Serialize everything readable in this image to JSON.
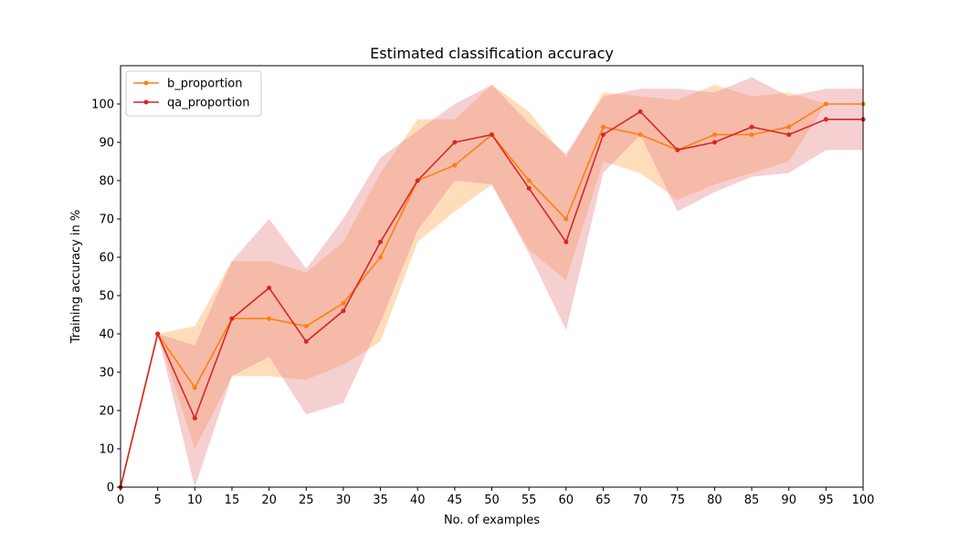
{
  "chart_data": {
    "type": "line",
    "title": "Estimated classification accuracy",
    "xlabel": "No. of examples",
    "ylabel": "Training accuracy in %",
    "xlim": [
      0,
      100
    ],
    "ylim": [
      0,
      110
    ],
    "grid": false,
    "legend_position": "top-left",
    "x": [
      0,
      5,
      10,
      15,
      20,
      25,
      30,
      35,
      40,
      45,
      50,
      55,
      60,
      65,
      70,
      75,
      80,
      85,
      90,
      95,
      100
    ],
    "x_ticks": [
      "0",
      "5",
      "10",
      "15",
      "20",
      "25",
      "30",
      "35",
      "40",
      "45",
      "50",
      "55",
      "60",
      "65",
      "70",
      "75",
      "80",
      "85",
      "90",
      "95",
      "100"
    ],
    "y_ticks": [
      "0",
      "10",
      "20",
      "30",
      "40",
      "50",
      "60",
      "70",
      "80",
      "90",
      "100"
    ],
    "series": [
      {
        "name": "b_proportion",
        "color": "#ff7f0e",
        "band_color": "#ffbb78",
        "values": [
          0,
          40,
          26,
          44,
          44,
          42,
          48,
          60,
          80,
          84,
          92,
          80,
          70,
          94,
          92,
          88,
          92,
          92,
          94,
          100,
          100
        ],
        "lower": [
          0,
          40,
          10,
          29,
          29,
          28,
          32,
          38,
          64,
          72,
          79,
          62,
          54,
          85,
          82,
          75,
          79,
          82,
          85,
          100,
          100
        ],
        "upper": [
          0,
          40,
          42,
          59,
          59,
          56,
          64,
          82,
          96,
          96,
          105,
          98,
          86,
          103,
          102,
          101,
          105,
          102,
          103,
          100,
          100
        ]
      },
      {
        "name": "qa_proportion",
        "color": "#d62728",
        "band_color": "#e8878d",
        "values": [
          0,
          40,
          18,
          44,
          52,
          38,
          46,
          64,
          80,
          90,
          92,
          78,
          64,
          92,
          98,
          88,
          90,
          94,
          92,
          96,
          96
        ],
        "lower": [
          0,
          40,
          0,
          29,
          34,
          19,
          22,
          43,
          67,
          80,
          79,
          61,
          41,
          82,
          92,
          72,
          77,
          81,
          82,
          88,
          88
        ],
        "upper": [
          0,
          40,
          37,
          59,
          70,
          57,
          70,
          86,
          93,
          100,
          105,
          95,
          87,
          102,
          104,
          104,
          103,
          107,
          102,
          104,
          104
        ]
      }
    ]
  }
}
